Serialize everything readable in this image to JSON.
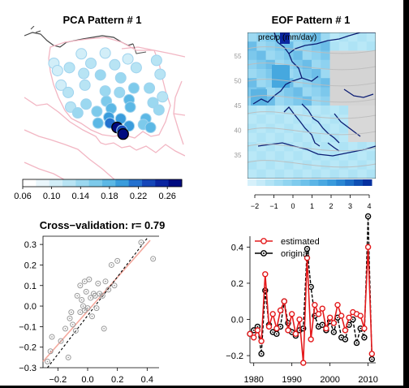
{
  "chart_data": [
    {
      "type": "heatmap",
      "panel": "pca-map",
      "title": "PCA Pattern # 1",
      "colorbar": {
        "ticks": [
          "0.06",
          "0.10",
          "0.14",
          "0.18",
          "0.22",
          "0.26"
        ],
        "range": [
          0.06,
          0.28
        ],
        "colors": [
          "#ffffff",
          "#eaf6fb",
          "#d2eef8",
          "#b8e4f4",
          "#9bd8f0",
          "#7dcaeb",
          "#5cb8e5",
          "#3a9cdc",
          "#2471cf",
          "#1546b8",
          "#0a25a0",
          "#000b80"
        ]
      },
      "stations": [
        {
          "lon": 16.6,
          "lat": 54.55,
          "v": 0.1
        },
        {
          "lon": 18.6,
          "lat": 54.6,
          "v": 0.095
        },
        {
          "lon": 20.5,
          "lat": 54.2,
          "v": 0.1
        },
        {
          "lon": 22.9,
          "lat": 54.1,
          "v": 0.11
        },
        {
          "lon": 14.3,
          "lat": 53.9,
          "v": 0.09
        },
        {
          "lon": 15.6,
          "lat": 53.6,
          "v": 0.11
        },
        {
          "lon": 17.4,
          "lat": 53.9,
          "v": 0.11
        },
        {
          "lon": 19.4,
          "lat": 53.8,
          "v": 0.12
        },
        {
          "lon": 21.2,
          "lat": 53.6,
          "v": 0.11
        },
        {
          "lon": 23.2,
          "lat": 53.15,
          "v": 0.12
        },
        {
          "lon": 14.6,
          "lat": 53.4,
          "v": 0.1
        },
        {
          "lon": 16.8,
          "lat": 53.2,
          "v": 0.12
        },
        {
          "lon": 18.2,
          "lat": 53.1,
          "v": 0.13
        },
        {
          "lon": 19.9,
          "lat": 52.9,
          "v": 0.14
        },
        {
          "lon": 21.0,
          "lat": 52.2,
          "v": 0.16
        },
        {
          "lon": 22.3,
          "lat": 52.2,
          "v": 0.13
        },
        {
          "lon": 14.9,
          "lat": 52.4,
          "v": 0.1
        },
        {
          "lon": 16.9,
          "lat": 52.4,
          "v": 0.12
        },
        {
          "lon": 18.6,
          "lat": 52.0,
          "v": 0.14
        },
        {
          "lon": 19.8,
          "lat": 51.9,
          "v": 0.15
        },
        {
          "lon": 23.4,
          "lat": 51.6,
          "v": 0.12
        },
        {
          "lon": 15.5,
          "lat": 51.9,
          "v": 0.11
        },
        {
          "lon": 17.0,
          "lat": 51.1,
          "v": 0.14
        },
        {
          "lon": 18.7,
          "lat": 51.3,
          "v": 0.16
        },
        {
          "lon": 20.6,
          "lat": 51.4,
          "v": 0.17
        },
        {
          "lon": 22.6,
          "lat": 51.2,
          "v": 0.15
        },
        {
          "lon": 15.7,
          "lat": 50.9,
          "v": 0.12
        },
        {
          "lon": 16.3,
          "lat": 50.5,
          "v": 0.13
        },
        {
          "lon": 17.9,
          "lat": 50.6,
          "v": 0.16
        },
        {
          "lon": 19.1,
          "lat": 50.8,
          "v": 0.17
        },
        {
          "lon": 20.7,
          "lat": 50.9,
          "v": 0.18
        },
        {
          "lon": 23.1,
          "lat": 50.7,
          "v": 0.15
        },
        {
          "lon": 18.9,
          "lat": 50.2,
          "v": 0.2
        },
        {
          "lon": 19.9,
          "lat": 50.1,
          "v": 0.21
        },
        {
          "lon": 22.0,
          "lat": 50.1,
          "v": 0.18
        },
        {
          "lon": 18.0,
          "lat": 49.8,
          "v": 0.17
        },
        {
          "lon": 19.0,
          "lat": 49.8,
          "v": 0.22
        },
        {
          "lon": 20.6,
          "lat": 49.6,
          "v": 0.2
        },
        {
          "lon": 21.8,
          "lat": 49.7,
          "v": 0.16
        },
        {
          "lon": 22.4,
          "lat": 49.5,
          "v": 0.17
        },
        {
          "lon": 19.6,
          "lat": 49.5,
          "v": 0.27
        },
        {
          "lon": 20.0,
          "lat": 49.3,
          "v": 0.23
        },
        {
          "lon": 20.1,
          "lat": 49.05,
          "v": 0.28
        }
      ]
    },
    {
      "type": "heatmap",
      "panel": "eof-map",
      "title": "EOF Pattern # 1",
      "subtitle": "precip (mm/day)",
      "yticks": [
        "35",
        "40",
        "45",
        "50",
        "55"
      ],
      "colorbar": {
        "ticks": [
          "−2",
          "−1",
          "0",
          "1",
          "2",
          "3",
          "4"
        ],
        "range": [
          -2.5,
          4.5
        ]
      }
    },
    {
      "type": "scatter",
      "panel": "cross-validation",
      "title": "Cross−validation: r= 0.79",
      "xticks": [
        "−0.2",
        "0.0",
        "0.2",
        "0.4"
      ],
      "yticks": [
        "−0.3",
        "−0.2",
        "−0.1",
        "0.0",
        "0.1",
        "0.2",
        "0.3"
      ],
      "xlim": [
        -0.3,
        0.48
      ],
      "ylim": [
        -0.3,
        0.34
      ],
      "points": [
        [
          -0.27,
          -0.27
        ],
        [
          -0.25,
          -0.22
        ],
        [
          -0.24,
          -0.15
        ],
        [
          -0.18,
          -0.17
        ],
        [
          -0.15,
          -0.11
        ],
        [
          -0.13,
          -0.25
        ],
        [
          -0.12,
          -0.06
        ],
        [
          -0.11,
          -0.03
        ],
        [
          -0.1,
          -0.09
        ],
        [
          -0.08,
          -0.12
        ],
        [
          -0.07,
          0.05
        ],
        [
          -0.05,
          -0.03
        ],
        [
          -0.05,
          0.1
        ],
        [
          -0.04,
          0.03
        ],
        [
          -0.03,
          0.0
        ],
        [
          -0.02,
          -0.02
        ],
        [
          -0.02,
          0.12
        ],
        [
          -0.01,
          0.07
        ],
        [
          0.0,
          -0.01
        ],
        [
          0.01,
          0.13
        ],
        [
          0.02,
          0.04
        ],
        [
          0.03,
          -0.05
        ],
        [
          0.04,
          0.06
        ],
        [
          0.05,
          0.05
        ],
        [
          0.06,
          -0.01
        ],
        [
          0.07,
          0.11
        ],
        [
          0.08,
          0.06
        ],
        [
          0.1,
          0.05
        ],
        [
          0.11,
          -0.11
        ],
        [
          0.12,
          0.12
        ],
        [
          0.14,
          0.08
        ],
        [
          0.16,
          0.2
        ],
        [
          0.18,
          0.1
        ],
        [
          0.2,
          0.22
        ],
        [
          0.36,
          0.31
        ],
        [
          0.44,
          0.23
        ]
      ],
      "fit_line": {
        "x": [
          -0.3,
          0.42
        ],
        "y": [
          -0.27,
          0.32
        ]
      },
      "identity_line": {
        "x": [
          -0.27,
          0.4
        ],
        "y": [
          -0.3,
          0.33
        ]
      }
    },
    {
      "type": "line",
      "panel": "time-series",
      "xticks": [
        "1980",
        "1990",
        "2000",
        "2010"
      ],
      "yticks": [
        "−0.2",
        "0.0",
        "0.2",
        "0.4"
      ],
      "xlim": [
        1979,
        2012
      ],
      "ylim": [
        -0.24,
        0.46
      ],
      "x": [
        1979,
        1980,
        1981,
        1982,
        1983,
        1984,
        1985,
        1986,
        1987,
        1988,
        1989,
        1990,
        1991,
        1992,
        1993,
        1994,
        1995,
        1996,
        1997,
        1998,
        1999,
        2000,
        2001,
        2002,
        2003,
        2004,
        2005,
        2006,
        2007,
        2008,
        2009,
        2010,
        2011
      ],
      "series": [
        {
          "name": "estimated",
          "color": "#e41a1c",
          "values": [
            -0.08,
            -0.1,
            -0.06,
            -0.12,
            0.25,
            -0.04,
            0.03,
            -0.05,
            0.05,
            0.1,
            -0.06,
            0.03,
            -0.08,
            0.0,
            -0.24,
            0.34,
            -0.11,
            0.08,
            0.03,
            0.06,
            -0.05,
            0.01,
            -0.02,
            0.08,
            0.02,
            -0.06,
            0.01,
            0.04,
            0.03,
            0.02,
            -0.05,
            0.4,
            -0.19
          ]
        },
        {
          "name": "original",
          "color": "#000000",
          "values": [
            -0.08,
            -0.06,
            -0.04,
            -0.19,
            0.16,
            -0.03,
            -0.07,
            -0.08,
            -0.04,
            0.1,
            -0.02,
            -0.07,
            -0.09,
            -0.06,
            -0.05,
            0.39,
            0.18,
            0.02,
            -0.04,
            -0.03,
            -0.06,
            -0.01,
            -0.07,
            0.01,
            -0.1,
            -0.11,
            -0.03,
            0.0,
            -0.13,
            -0.05,
            -0.1,
            0.57,
            -0.22
          ]
        }
      ]
    }
  ]
}
